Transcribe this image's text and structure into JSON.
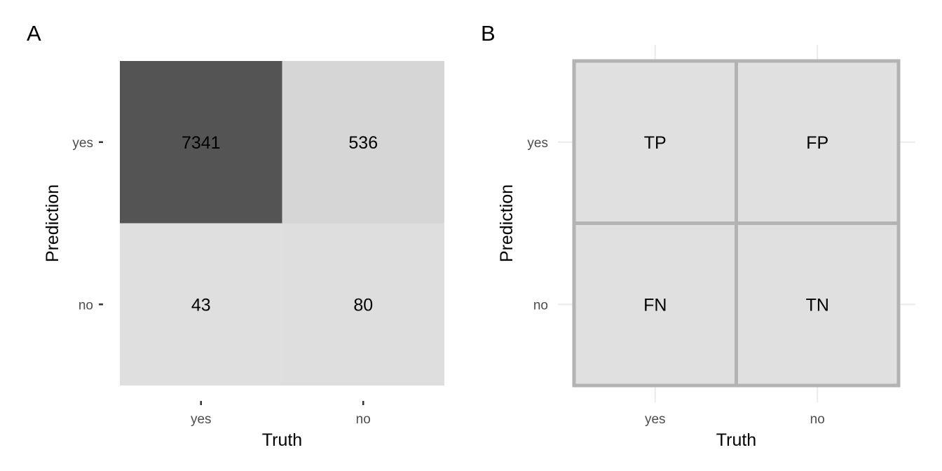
{
  "chart_data": [
    {
      "panel": "A",
      "type": "heatmap",
      "xlabel": "Truth",
      "ylabel": "Prediction",
      "x_categories": [
        "yes",
        "no"
      ],
      "y_categories": [
        "yes",
        "no"
      ],
      "cells": [
        {
          "truth": "yes",
          "prediction": "yes",
          "value": 7341,
          "fill": "#545454"
        },
        {
          "truth": "no",
          "prediction": "yes",
          "value": 536,
          "fill": "#d6d6d6"
        },
        {
          "truth": "yes",
          "prediction": "no",
          "value": 43,
          "fill": "#dfdfdf"
        },
        {
          "truth": "no",
          "prediction": "no",
          "value": 80,
          "fill": "#dedede"
        }
      ],
      "grid": false
    },
    {
      "panel": "B",
      "type": "table",
      "xlabel": "Truth",
      "ylabel": "Prediction",
      "x_categories": [
        "yes",
        "no"
      ],
      "y_categories": [
        "yes",
        "no"
      ],
      "cells": [
        {
          "truth": "yes",
          "prediction": "yes",
          "label": "TP"
        },
        {
          "truth": "no",
          "prediction": "yes",
          "label": "FP"
        },
        {
          "truth": "yes",
          "prediction": "no",
          "label": "FN"
        },
        {
          "truth": "no",
          "prediction": "no",
          "label": "TN"
        }
      ],
      "cell_fill": "#e0e0e0",
      "border_color": "#b3b3b3",
      "grid": true
    }
  ]
}
